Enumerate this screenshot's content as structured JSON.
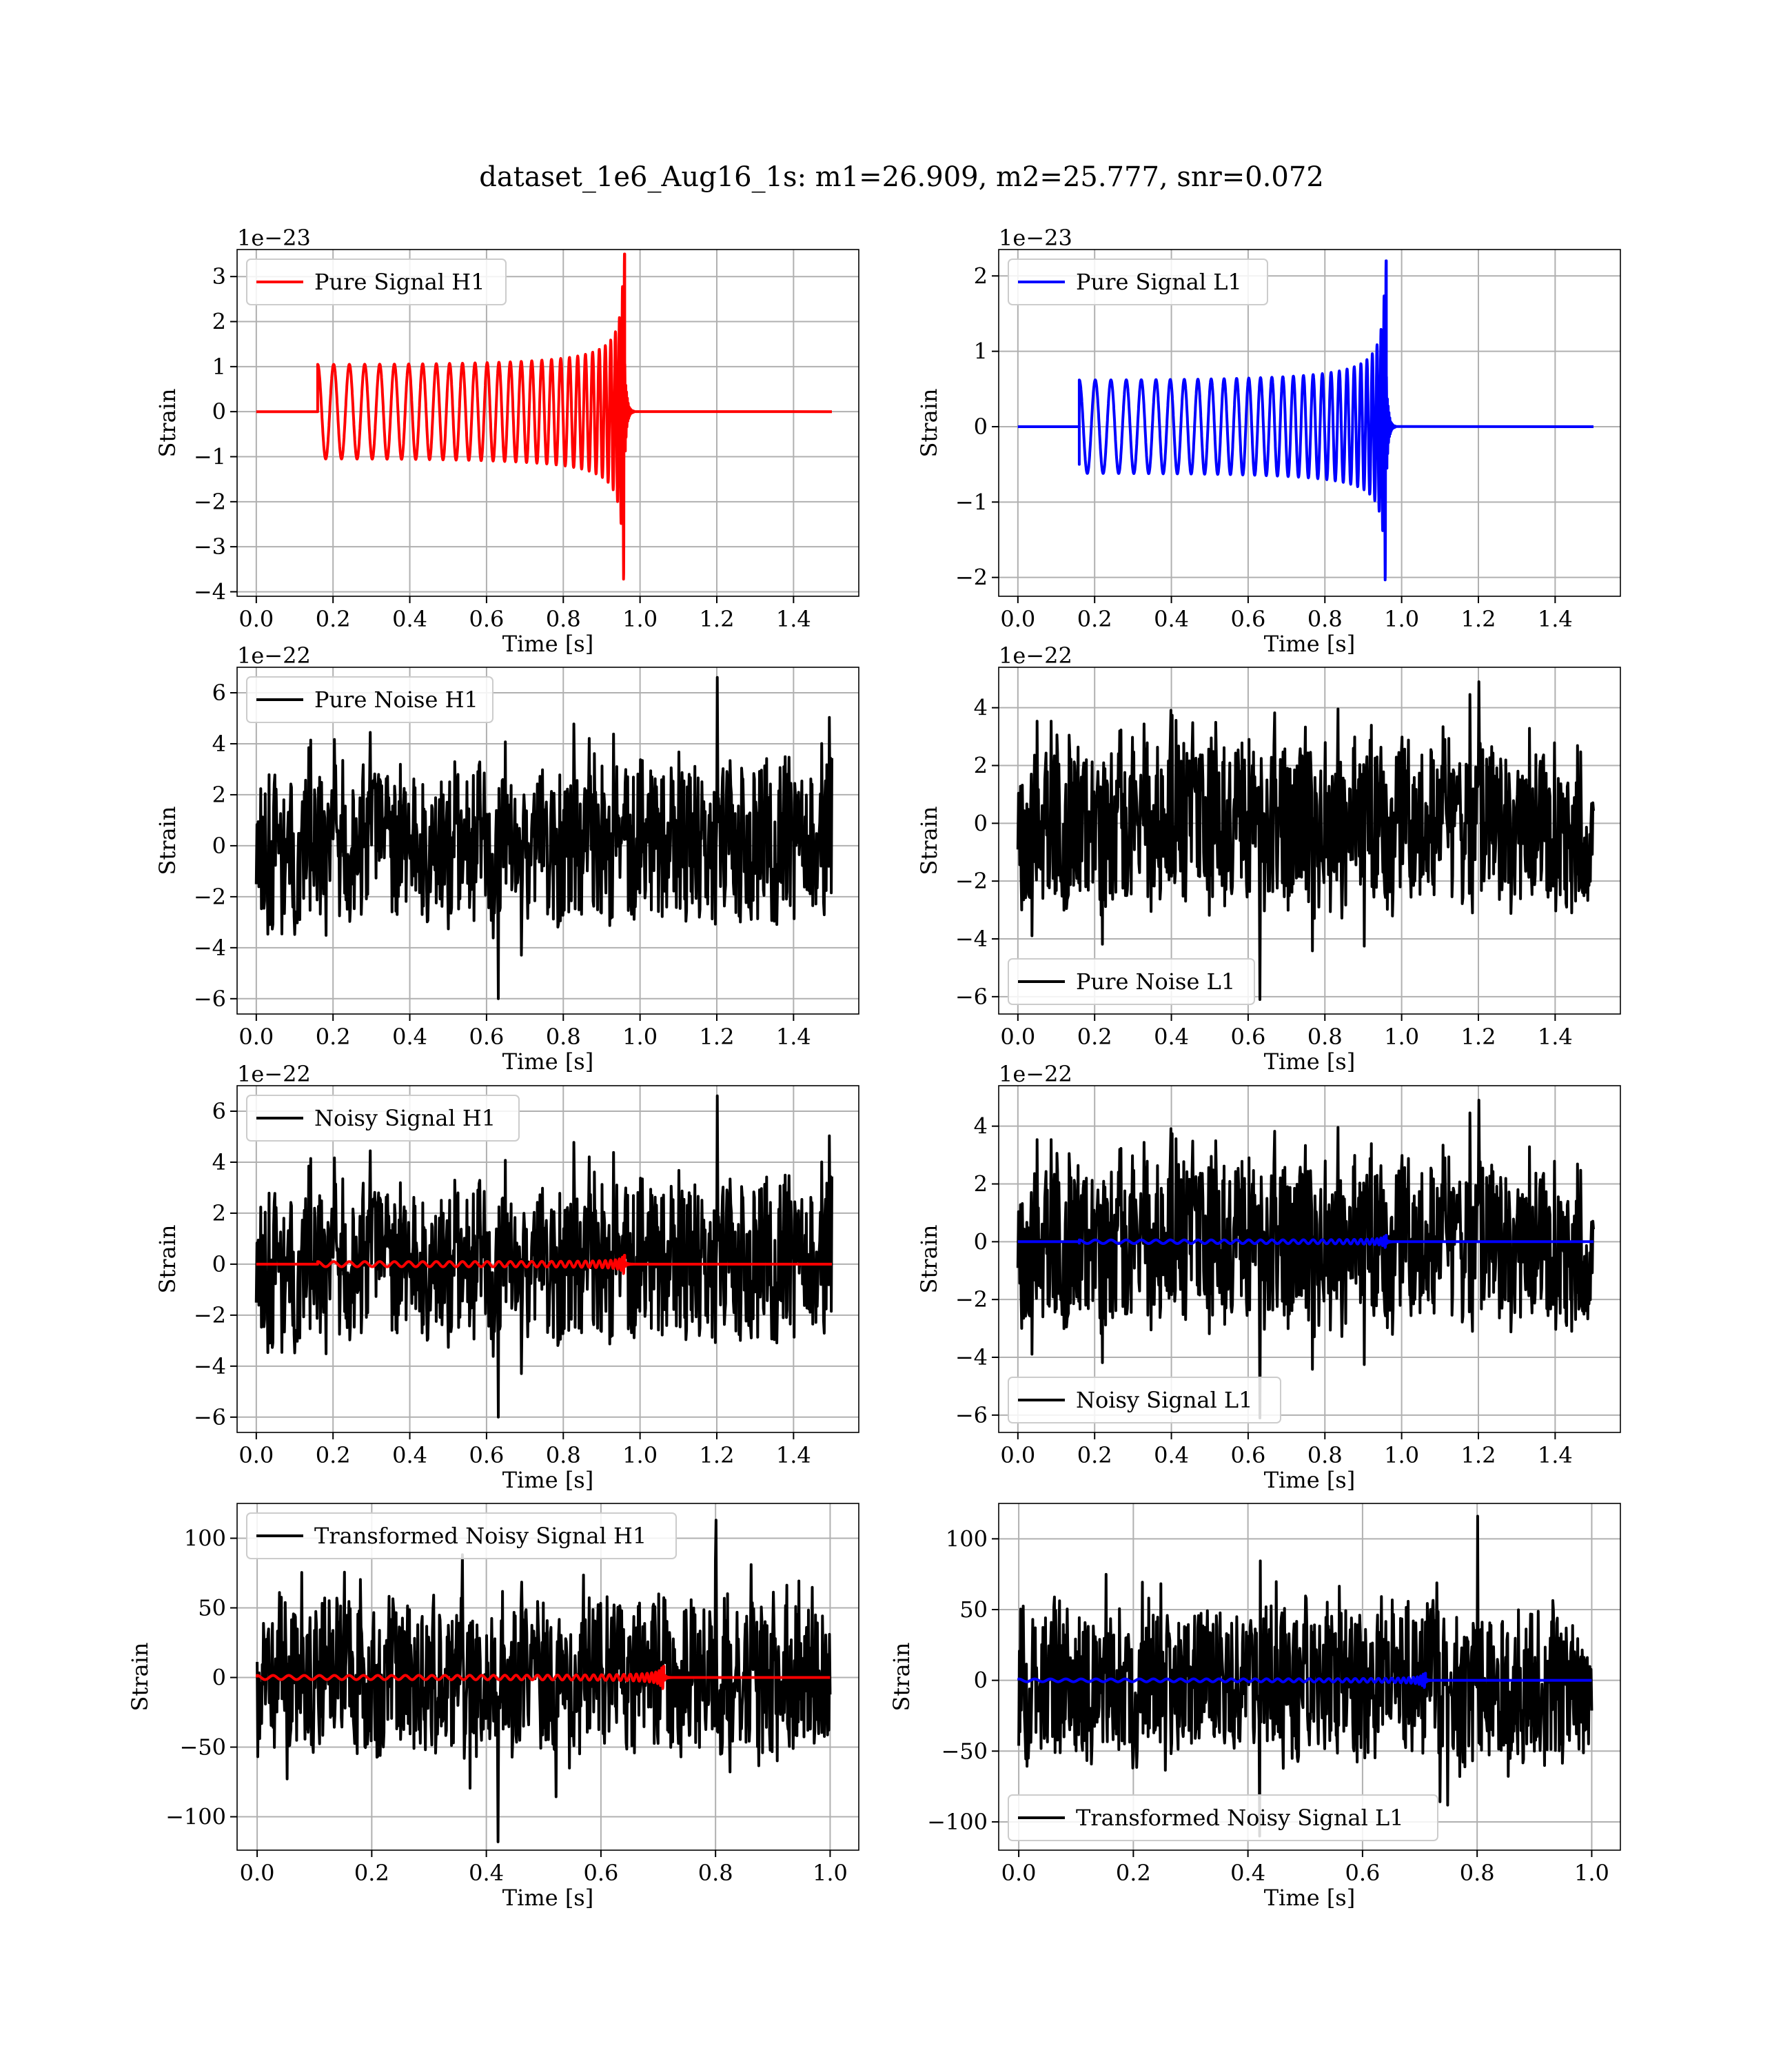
{
  "figure_title": "dataset_1e6_Aug16_1s: m1=26.909, m2=25.777, snr=0.072",
  "chart_data": [
    {
      "type": "line",
      "legend": "Pure Signal H1",
      "legend_position": "upper-left",
      "offset_label": "1e−23",
      "xlabel": "Time [s]",
      "ylabel": "Strain",
      "xlim": [
        -0.05,
        1.57
      ],
      "ylim": [
        -4.1,
        3.6
      ],
      "xticks": [
        0.0,
        0.2,
        0.4,
        0.6,
        0.8,
        1.0,
        1.2,
        1.4
      ],
      "xtick_labels": [
        "0.0",
        "0.2",
        "0.4",
        "0.6",
        "0.8",
        "1.0",
        "1.2",
        "1.4"
      ],
      "yticks": [
        -4,
        -3,
        -2,
        -1,
        0,
        1,
        2,
        3
      ],
      "ytick_labels": [
        "−4",
        "−3",
        "−2",
        "−1",
        "0",
        "1",
        "2",
        "3"
      ],
      "grid": true,
      "series": [
        {
          "name": "Pure Signal H1",
          "color": "#ff0000",
          "kind": "chirp",
          "x_start": 0.0,
          "x_end": 1.5,
          "t_on": 0.16,
          "t_merge": 0.96,
          "t_ring": 0.985,
          "amp_start": 1.05,
          "amp_peak_pos": 3.5,
          "amp_peak_neg": -3.75,
          "onset_value": 0.9,
          "cycles": 30
        }
      ]
    },
    {
      "type": "line",
      "legend": "Pure Signal L1",
      "legend_position": "upper-left",
      "offset_label": "1e−23",
      "xlabel": "Time [s]",
      "ylabel": "Strain",
      "xlim": [
        -0.05,
        1.57
      ],
      "ylim": [
        -2.25,
        2.35
      ],
      "xticks": [
        0.0,
        0.2,
        0.4,
        0.6,
        0.8,
        1.0,
        1.2,
        1.4
      ],
      "xtick_labels": [
        "0.0",
        "0.2",
        "0.4",
        "0.6",
        "0.8",
        "1.0",
        "1.2",
        "1.4"
      ],
      "yticks": [
        -2,
        -1,
        0,
        1,
        2
      ],
      "ytick_labels": [
        "−2",
        "−1",
        "0",
        "1",
        "2"
      ],
      "grid": true,
      "series": [
        {
          "name": "Pure Signal L1",
          "color": "#0000ff",
          "kind": "chirp",
          "x_start": 0.0,
          "x_end": 1.5,
          "t_on": 0.16,
          "t_merge": 0.96,
          "t_ring": 0.985,
          "amp_start": 0.62,
          "amp_peak_pos": 2.2,
          "amp_peak_neg": -2.05,
          "onset_value": -0.5,
          "cycles": 30
        }
      ]
    },
    {
      "type": "line",
      "legend": "Pure Noise H1",
      "legend_position": "upper-left",
      "offset_label": "1e−22",
      "xlabel": "Time [s]",
      "ylabel": "Strain",
      "xlim": [
        -0.05,
        1.57
      ],
      "ylim": [
        -6.6,
        7.0
      ],
      "xticks": [
        0.0,
        0.2,
        0.4,
        0.6,
        0.8,
        1.0,
        1.2,
        1.4
      ],
      "xtick_labels": [
        "0.0",
        "0.2",
        "0.4",
        "0.6",
        "0.8",
        "1.0",
        "1.2",
        "1.4"
      ],
      "yticks": [
        -6,
        -4,
        -2,
        0,
        2,
        4,
        6
      ],
      "ytick_labels": [
        "−6",
        "−4",
        "−2",
        "0",
        "2",
        "4",
        "6"
      ],
      "grid": true,
      "series": [
        {
          "name": "Pure Noise H1",
          "color": "#000000",
          "kind": "noise",
          "x_start": 0.0,
          "x_end": 1.5,
          "max": 6.6,
          "min": -6.0,
          "seed": 11
        }
      ]
    },
    {
      "type": "line",
      "legend": "Pure Noise L1",
      "legend_position": "lower-left",
      "offset_label": "1e−22",
      "xlabel": "Time [s]",
      "ylabel": "Strain",
      "xlim": [
        -0.05,
        1.57
      ],
      "ylim": [
        -6.6,
        5.4
      ],
      "xticks": [
        0.0,
        0.2,
        0.4,
        0.6,
        0.8,
        1.0,
        1.2,
        1.4
      ],
      "xtick_labels": [
        "0.0",
        "0.2",
        "0.4",
        "0.6",
        "0.8",
        "1.0",
        "1.2",
        "1.4"
      ],
      "yticks": [
        -6,
        -4,
        -2,
        0,
        2,
        4
      ],
      "ytick_labels": [
        "−6",
        "−4",
        "−2",
        "0",
        "2",
        "4"
      ],
      "grid": true,
      "series": [
        {
          "name": "Pure Noise L1",
          "color": "#000000",
          "kind": "noise",
          "x_start": 0.0,
          "x_end": 1.5,
          "max": 4.9,
          "min": -6.1,
          "seed": 23
        }
      ]
    },
    {
      "type": "line",
      "legend": "Noisy Signal H1",
      "legend_position": "upper-left",
      "offset_label": "1e−22",
      "xlabel": "Time [s]",
      "ylabel": "Strain",
      "xlim": [
        -0.05,
        1.57
      ],
      "ylim": [
        -6.6,
        7.0
      ],
      "xticks": [
        0.0,
        0.2,
        0.4,
        0.6,
        0.8,
        1.0,
        1.2,
        1.4
      ],
      "xtick_labels": [
        "0.0",
        "0.2",
        "0.4",
        "0.6",
        "0.8",
        "1.0",
        "1.2",
        "1.4"
      ],
      "yticks": [
        -6,
        -4,
        -2,
        0,
        2,
        4,
        6
      ],
      "ytick_labels": [
        "−6",
        "−4",
        "−2",
        "0",
        "2",
        "4",
        "6"
      ],
      "grid": true,
      "series": [
        {
          "name": "Noisy Signal H1",
          "color": "#000000",
          "kind": "noise",
          "x_start": 0.0,
          "x_end": 1.5,
          "max": 6.6,
          "min": -6.0,
          "seed": 11
        },
        {
          "color": "#ff0000",
          "kind": "chirp",
          "x_start": 0.0,
          "x_end": 1.5,
          "t_on": 0.16,
          "t_merge": 0.96,
          "t_ring": 0.985,
          "amp_start": 0.1,
          "amp_peak_pos": 0.35,
          "amp_peak_neg": -0.37,
          "onset_value": 0.09,
          "cycles": 30
        }
      ]
    },
    {
      "type": "line",
      "legend": "Noisy Signal L1",
      "legend_position": "lower-left",
      "offset_label": "1e−22",
      "xlabel": "Time [s]",
      "ylabel": "Strain",
      "xlim": [
        -0.05,
        1.57
      ],
      "ylim": [
        -6.6,
        5.4
      ],
      "xticks": [
        0.0,
        0.2,
        0.4,
        0.6,
        0.8,
        1.0,
        1.2,
        1.4
      ],
      "xtick_labels": [
        "0.0",
        "0.2",
        "0.4",
        "0.6",
        "0.8",
        "1.0",
        "1.2",
        "1.4"
      ],
      "yticks": [
        -6,
        -4,
        -2,
        0,
        2,
        4
      ],
      "ytick_labels": [
        "−6",
        "−4",
        "−2",
        "0",
        "2",
        "4"
      ],
      "grid": true,
      "series": [
        {
          "name": "Noisy Signal L1",
          "color": "#000000",
          "kind": "noise",
          "x_start": 0.0,
          "x_end": 1.5,
          "max": 4.9,
          "min": -6.1,
          "seed": 23
        },
        {
          "color": "#0000ff",
          "kind": "chirp",
          "x_start": 0.0,
          "x_end": 1.5,
          "t_on": 0.16,
          "t_merge": 0.96,
          "t_ring": 0.985,
          "amp_start": 0.062,
          "amp_peak_pos": 0.22,
          "amp_peak_neg": -0.2,
          "onset_value": -0.05,
          "cycles": 30
        }
      ]
    },
    {
      "type": "line",
      "legend": "Transformed Noisy Signal H1",
      "legend_position": "upper-left",
      "offset_label": "",
      "xlabel": "Time [s]",
      "ylabel": "Strain",
      "xlim": [
        -0.035,
        1.05
      ],
      "ylim": [
        -124,
        125
      ],
      "xticks": [
        0.0,
        0.2,
        0.4,
        0.6,
        0.8,
        1.0
      ],
      "xtick_labels": [
        "0.0",
        "0.2",
        "0.4",
        "0.6",
        "0.8",
        "1.0"
      ],
      "yticks": [
        -100,
        -50,
        0,
        50,
        100
      ],
      "ytick_labels": [
        "−100",
        "−50",
        "0",
        "50",
        "100"
      ],
      "grid": true,
      "series": [
        {
          "name": "Transformed Noisy Signal H1",
          "color": "#000000",
          "kind": "noise",
          "x_start": 0.0,
          "x_end": 1.0,
          "max": 113,
          "min": -118,
          "seed": 37
        },
        {
          "color": "#ff0000",
          "kind": "chirp",
          "x_start": 0.0,
          "x_end": 1.0,
          "t_on": 0.0,
          "t_merge": 0.71,
          "t_ring": 0.725,
          "amp_start": 1.5,
          "amp_peak_pos": 8,
          "amp_peak_neg": -8,
          "onset_value": 0,
          "cycles": 40
        }
      ]
    },
    {
      "type": "line",
      "legend": "Transformed Noisy Signal L1",
      "legend_position": "lower-left",
      "offset_label": "",
      "xlabel": "Time [s]",
      "ylabel": "Strain",
      "xlim": [
        -0.035,
        1.05
      ],
      "ylim": [
        -120,
        125
      ],
      "xticks": [
        0.0,
        0.2,
        0.4,
        0.6,
        0.8,
        1.0
      ],
      "xtick_labels": [
        "0.0",
        "0.2",
        "0.4",
        "0.6",
        "0.8",
        "1.0"
      ],
      "yticks": [
        -100,
        -50,
        0,
        50,
        100
      ],
      "ytick_labels": [
        "−100",
        "−50",
        "0",
        "50",
        "100"
      ],
      "grid": true,
      "series": [
        {
          "name": "Transformed Noisy Signal L1",
          "color": "#000000",
          "kind": "noise",
          "x_start": 0.0,
          "x_end": 1.0,
          "max": 116,
          "min": -110,
          "seed": 53
        },
        {
          "color": "#0000ff",
          "kind": "chirp",
          "x_start": 0.0,
          "x_end": 1.0,
          "t_on": 0.0,
          "t_merge": 0.71,
          "t_ring": 0.725,
          "amp_start": 1.0,
          "amp_peak_pos": 5,
          "amp_peak_neg": -5,
          "onset_value": 0,
          "cycles": 40
        }
      ]
    }
  ]
}
